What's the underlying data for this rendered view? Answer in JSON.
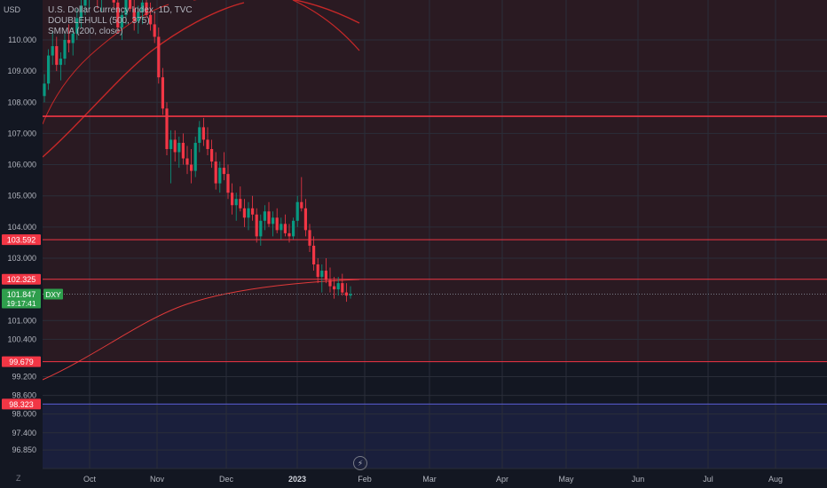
{
  "header": {
    "currency": "USD",
    "title": "U.S. Dollar Currency Index, 1D, TVC",
    "indicator1": "DOUBLEHULL (500, 375)",
    "indicator2": "SMMA (200, close)"
  },
  "colors": {
    "background": "#131722",
    "up": "#089981",
    "down": "#f23645",
    "line_red": "#f23645",
    "price_green": "#2e9e4c",
    "band_blue": "#1a1f3c"
  },
  "icons": {
    "reset": "z-icon",
    "lightning": "lightning-icon"
  },
  "chart_data": {
    "type": "candlestick",
    "title": "U.S. Dollar Currency Index, 1D, TVC",
    "symbol": "DXY",
    "y_ticks": [
      110.0,
      109.0,
      108.0,
      107.0,
      106.0,
      105.0,
      104.0,
      103.0,
      101.0,
      100.4,
      99.2,
      98.6,
      98.0,
      97.4,
      96.85
    ],
    "y_tick_labels": [
      "110.000",
      "109.000",
      "108.000",
      "107.000",
      "106.000",
      "105.000",
      "104.000",
      "103.000",
      "101.000",
      "100.400",
      "99.200",
      "98.600",
      "98.000",
      "97.400",
      "96.850"
    ],
    "x_labels": [
      "Oct",
      "Nov",
      "Dec",
      "2023",
      "Feb",
      "Mar",
      "Apr",
      "May",
      "Jun",
      "Jul",
      "Aug"
    ],
    "horizontal_levels": [
      107.55,
      103.592,
      102.325,
      99.679,
      98.323
    ],
    "price_labels": [
      {
        "text": "103.592",
        "value": 103.592
      },
      {
        "text": "102.325",
        "value": 102.325
      },
      {
        "text": "99.679",
        "value": 99.679
      },
      {
        "text": "98.323",
        "value": 98.323
      }
    ],
    "current_price": {
      "value": 101.847,
      "text": "101.847",
      "countdown": "19:17:41",
      "symbol": "DXY"
    },
    "series": [
      {
        "name": "DXY",
        "ohlc": [
          [
            108.2,
            108.9,
            108.0,
            108.6
          ],
          [
            108.6,
            109.7,
            108.4,
            109.5
          ],
          [
            109.5,
            110.3,
            109.2,
            109.8
          ],
          [
            109.8,
            110.1,
            109.0,
            109.2
          ],
          [
            109.2,
            109.6,
            108.7,
            109.4
          ],
          [
            109.4,
            110.2,
            109.2,
            110.0
          ],
          [
            110.0,
            110.5,
            109.6,
            109.9
          ],
          [
            109.9,
            110.4,
            109.5,
            110.2
          ],
          [
            110.2,
            111.0,
            110.0,
            110.7
          ],
          [
            110.7,
            111.3,
            110.4,
            111.1
          ],
          [
            111.1,
            111.6,
            110.8,
            111.3
          ],
          [
            111.3,
            112.2,
            111.0,
            112.0
          ],
          [
            112.0,
            112.4,
            111.4,
            111.6
          ],
          [
            111.6,
            111.9,
            111.0,
            111.4
          ],
          [
            111.4,
            111.8,
            110.9,
            111.6
          ],
          [
            111.6,
            112.1,
            111.3,
            111.9
          ],
          [
            111.9,
            112.3,
            111.5,
            111.7
          ],
          [
            111.7,
            112.0,
            111.0,
            111.2
          ],
          [
            111.2,
            111.5,
            110.2,
            110.4
          ],
          [
            110.4,
            110.9,
            110.0,
            110.8
          ],
          [
            110.8,
            111.5,
            110.5,
            111.3
          ],
          [
            111.3,
            111.8,
            110.9,
            111.0
          ],
          [
            111.0,
            111.4,
            110.3,
            110.6
          ],
          [
            110.6,
            111.1,
            110.2,
            110.9
          ],
          [
            110.9,
            111.4,
            110.5,
            111.2
          ],
          [
            111.2,
            111.6,
            110.7,
            110.8
          ],
          [
            110.8,
            111.2,
            110.3,
            110.5
          ],
          [
            110.5,
            110.9,
            109.9,
            110.1
          ],
          [
            110.1,
            110.4,
            108.6,
            108.8
          ],
          [
            108.8,
            109.1,
            107.6,
            107.8
          ],
          [
            107.8,
            108.0,
            106.3,
            106.5
          ],
          [
            106.5,
            107.1,
            105.4,
            106.8
          ],
          [
            106.8,
            107.1,
            106.1,
            106.4
          ],
          [
            106.4,
            106.9,
            105.9,
            106.7
          ],
          [
            106.7,
            107.0,
            106.0,
            106.2
          ],
          [
            106.2,
            106.6,
            105.7,
            106.0
          ],
          [
            106.0,
            106.5,
            105.4,
            105.8
          ],
          [
            105.8,
            106.9,
            105.6,
            106.7
          ],
          [
            106.7,
            107.4,
            106.4,
            107.2
          ],
          [
            107.2,
            107.5,
            106.6,
            106.8
          ],
          [
            106.8,
            107.2,
            106.3,
            106.5
          ],
          [
            106.5,
            106.8,
            105.9,
            106.1
          ],
          [
            106.1,
            106.4,
            105.2,
            105.4
          ],
          [
            105.4,
            106.1,
            105.1,
            105.9
          ],
          [
            105.9,
            106.4,
            105.5,
            105.7
          ],
          [
            105.7,
            106.0,
            104.9,
            105.1
          ],
          [
            105.1,
            105.4,
            104.4,
            104.7
          ],
          [
            104.7,
            105.1,
            104.2,
            104.9
          ],
          [
            104.9,
            105.3,
            104.5,
            104.6
          ],
          [
            104.6,
            104.9,
            104.0,
            104.3
          ],
          [
            104.3,
            104.8,
            103.9,
            104.6
          ],
          [
            104.6,
            105.0,
            104.2,
            104.4
          ],
          [
            104.4,
            104.6,
            103.5,
            103.7
          ],
          [
            103.7,
            104.4,
            103.4,
            104.2
          ],
          [
            104.2,
            104.7,
            103.9,
            104.5
          ],
          [
            104.5,
            104.8,
            104.0,
            104.1
          ],
          [
            104.1,
            104.5,
            103.7,
            104.3
          ],
          [
            104.3,
            104.6,
            103.8,
            103.9
          ],
          [
            103.9,
            104.3,
            103.6,
            104.1
          ],
          [
            104.1,
            104.4,
            103.7,
            103.8
          ],
          [
            103.8,
            104.1,
            103.5,
            103.7
          ],
          [
            103.7,
            104.3,
            103.6,
            104.2
          ],
          [
            104.2,
            105.0,
            104.0,
            104.8
          ],
          [
            104.8,
            105.6,
            104.5,
            104.6
          ],
          [
            104.6,
            104.9,
            103.7,
            103.9
          ],
          [
            103.9,
            104.1,
            103.2,
            103.4
          ],
          [
            103.4,
            103.7,
            102.6,
            102.8
          ],
          [
            102.8,
            103.0,
            102.2,
            102.4
          ],
          [
            102.4,
            102.8,
            101.9,
            102.6
          ],
          [
            102.6,
            103.0,
            102.2,
            102.3
          ],
          [
            102.3,
            102.7,
            101.9,
            102.1
          ],
          [
            102.1,
            102.4,
            101.7,
            102.0
          ],
          [
            102.0,
            102.4,
            101.8,
            102.2
          ],
          [
            102.2,
            102.5,
            101.8,
            101.9
          ],
          [
            101.9,
            102.2,
            101.6,
            101.8
          ],
          [
            101.8,
            102.1,
            101.7,
            101.85
          ]
        ]
      }
    ],
    "indicators": [
      {
        "name": "DOUBLEHULL (500, 375)"
      },
      {
        "name": "SMMA (200, close)"
      }
    ]
  }
}
